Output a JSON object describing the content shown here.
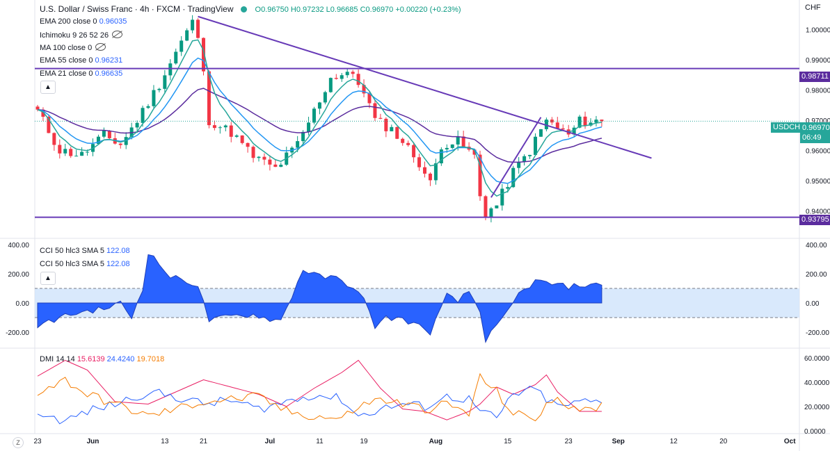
{
  "header": {
    "symbol_title": "U.S. Dollar / Swiss Franc · 4h · FXCM · TradingView",
    "ohlc": "O0.96750 H0.97232 L0.96685 C0.96970 +0.00220 (+0.23%)"
  },
  "indicators_main": [
    {
      "label": "EMA 200 close 0",
      "value": "0.96035",
      "visible": true
    },
    {
      "label": "Ichimoku 9 26 52 26",
      "value": "",
      "visible": false
    },
    {
      "label": "MA 100 close 0",
      "value": "",
      "visible": false
    },
    {
      "label": "EMA 55 close 0",
      "value": "0.96231",
      "visible": true
    },
    {
      "label": "EMA 21 close 0",
      "value": "0.96635",
      "visible": true
    }
  ],
  "cci_legend": [
    {
      "label": "CCI 50 hlc3 SMA 5",
      "value": "122.08"
    },
    {
      "label": "CCI 50 hlc3 SMA 5",
      "value": "122.08"
    }
  ],
  "dmi_legend": {
    "label": "DMI 14 14",
    "v1": "15.6139",
    "v2": "24.4240",
    "v3": "19.7018"
  },
  "currency": "CHF",
  "symbol_tag": "USDCHF",
  "price_tag": "0.96970",
  "countdown": "06:49",
  "level_high": "0.98711",
  "level_low": "0.93795",
  "colors": {
    "up": "#089981",
    "down": "#f23645",
    "ema21": "#26a69a",
    "ema55": "#2196f3",
    "ema200": "#5b2c9e",
    "trend": "#673ab7",
    "cci_fill": "#2962ff",
    "cci_band": "#cfe3fb",
    "dmi_plus": "#2962ff",
    "dmi_minus": "#f57c00",
    "adx": "#e91e63"
  },
  "chart_data": [
    {
      "type": "candlestick",
      "title": "U.S. Dollar / Swiss Franc",
      "timeframe": "4h",
      "y_ticks": [
        "1.00000",
        "0.99000",
        "0.98000",
        "0.97000",
        "0.96000",
        "0.95000",
        "0.94000"
      ],
      "x_ticks": [
        "23",
        "Jun",
        "13",
        "21",
        "Jul",
        "11",
        "19",
        "Aug",
        "15",
        "23",
        "Sep",
        "12",
        "20",
        "Oct"
      ],
      "ylim": [
        0.9335,
        1.007
      ],
      "close_path": [
        {
          "x": 0,
          "p": 0.973
        },
        {
          "x": 4,
          "p": 0.96
        },
        {
          "x": 8,
          "p": 0.9585
        },
        {
          "x": 12,
          "p": 0.965
        },
        {
          "x": 15,
          "p": 0.962
        },
        {
          "x": 18,
          "p": 0.97
        },
        {
          "x": 22,
          "p": 0.982
        },
        {
          "x": 26,
          "p": 0.996
        },
        {
          "x": 28.5,
          "p": 1.004
        },
        {
          "x": 30,
          "p": 0.985
        },
        {
          "x": 31,
          "p": 0.97
        },
        {
          "x": 35,
          "p": 0.966
        },
        {
          "x": 39,
          "p": 0.958
        },
        {
          "x": 43,
          "p": 0.954
        },
        {
          "x": 47,
          "p": 0.962
        },
        {
          "x": 50,
          "p": 0.973
        },
        {
          "x": 53,
          "p": 0.984
        },
        {
          "x": 56,
          "p": 0.986
        },
        {
          "x": 59,
          "p": 0.98
        },
        {
          "x": 61,
          "p": 0.97
        },
        {
          "x": 64,
          "p": 0.967
        },
        {
          "x": 66,
          "p": 0.963
        },
        {
          "x": 69,
          "p": 0.956
        },
        {
          "x": 71,
          "p": 0.949
        },
        {
          "x": 73,
          "p": 0.962
        },
        {
          "x": 76,
          "p": 0.963
        },
        {
          "x": 79,
          "p": 0.958
        },
        {
          "x": 80.5,
          "p": 0.9385
        },
        {
          "x": 83,
          "p": 0.942
        },
        {
          "x": 86,
          "p": 0.953
        },
        {
          "x": 89,
          "p": 0.96
        },
        {
          "x": 92,
          "p": 0.97
        },
        {
          "x": 96,
          "p": 0.965
        },
        {
          "x": 98,
          "p": 0.9697
        }
      ],
      "annotations": {
        "horizontal_levels": [
          0.98711,
          0.93795
        ],
        "downtrend_line": [
          {
            "x": 29,
            "p": 1.0043
          },
          {
            "x": 111,
            "p": 0.9575
          }
        ],
        "channel_line": [
          {
            "x": 82,
            "p": 0.9445
          },
          {
            "x": 91,
            "p": 0.971
          }
        ],
        "last_price": 0.9697
      }
    },
    {
      "type": "area",
      "title": "CCI 50 hlc3 SMA 5",
      "y_ticks": [
        "400.00",
        "200.00",
        "0.00",
        "-200.00"
      ],
      "ylim": [
        -280,
        420
      ],
      "band": [
        -100,
        100
      ],
      "path": [
        {
          "x": 0,
          "v": -160
        },
        {
          "x": 4,
          "v": -100
        },
        {
          "x": 8,
          "v": -60
        },
        {
          "x": 12,
          "v": -40
        },
        {
          "x": 15,
          "v": 0
        },
        {
          "x": 17,
          "v": -100
        },
        {
          "x": 19,
          "v": 100
        },
        {
          "x": 20,
          "v": 350
        },
        {
          "x": 24,
          "v": 180
        },
        {
          "x": 27,
          "v": 150
        },
        {
          "x": 29,
          "v": 120
        },
        {
          "x": 31,
          "v": -120
        },
        {
          "x": 35,
          "v": -90
        },
        {
          "x": 39,
          "v": -80
        },
        {
          "x": 42,
          "v": -110
        },
        {
          "x": 44,
          "v": -120
        },
        {
          "x": 46,
          "v": 50
        },
        {
          "x": 48,
          "v": 230
        },
        {
          "x": 51,
          "v": 180
        },
        {
          "x": 54,
          "v": 170
        },
        {
          "x": 57,
          "v": 110
        },
        {
          "x": 59,
          "v": 20
        },
        {
          "x": 61,
          "v": -160
        },
        {
          "x": 63,
          "v": -100
        },
        {
          "x": 66,
          "v": -110
        },
        {
          "x": 69,
          "v": -160
        },
        {
          "x": 71,
          "v": -200
        },
        {
          "x": 74,
          "v": 50
        },
        {
          "x": 76,
          "v": 10
        },
        {
          "x": 78,
          "v": 80
        },
        {
          "x": 80,
          "v": -60
        },
        {
          "x": 81,
          "v": -250
        },
        {
          "x": 84,
          "v": -120
        },
        {
          "x": 87,
          "v": 60
        },
        {
          "x": 90,
          "v": 150
        },
        {
          "x": 93,
          "v": 130
        },
        {
          "x": 96,
          "v": 110
        },
        {
          "x": 98,
          "v": 122
        }
      ]
    },
    {
      "type": "line",
      "title": "DMI 14 14",
      "y_ticks": [
        "60.0000",
        "40.0000",
        "20.0000",
        "0.0000"
      ],
      "ylim": [
        -2,
        64
      ],
      "series": [
        {
          "name": "15.6139",
          "color": "#e91e63",
          "values": [
            {
              "x": 0,
              "v": 45
            },
            {
              "x": 5,
              "v": 58
            },
            {
              "x": 9,
              "v": 50
            },
            {
              "x": 14,
              "v": 24
            },
            {
              "x": 20,
              "v": 22
            },
            {
              "x": 25,
              "v": 32
            },
            {
              "x": 30,
              "v": 42
            },
            {
              "x": 35,
              "v": 36
            },
            {
              "x": 40,
              "v": 30
            },
            {
              "x": 45,
              "v": 20
            },
            {
              "x": 50,
              "v": 35
            },
            {
              "x": 55,
              "v": 48
            },
            {
              "x": 58,
              "v": 58
            },
            {
              "x": 62,
              "v": 35
            },
            {
              "x": 66,
              "v": 18
            },
            {
              "x": 70,
              "v": 16
            },
            {
              "x": 74,
              "v": 9
            },
            {
              "x": 78,
              "v": 16
            },
            {
              "x": 80,
              "v": 22
            },
            {
              "x": 83,
              "v": 36
            },
            {
              "x": 86,
              "v": 30
            },
            {
              "x": 90,
              "v": 38
            },
            {
              "x": 92,
              "v": 46
            },
            {
              "x": 94,
              "v": 32
            },
            {
              "x": 97,
              "v": 20
            },
            {
              "x": 98,
              "v": 16
            }
          ]
        },
        {
          "name": "24.4240",
          "color": "#2962ff",
          "values": [
            {
              "x": 0,
              "v": 14
            },
            {
              "x": 5,
              "v": 8
            },
            {
              "x": 9,
              "v": 16
            },
            {
              "x": 14,
              "v": 22
            },
            {
              "x": 20,
              "v": 32
            },
            {
              "x": 25,
              "v": 28
            },
            {
              "x": 30,
              "v": 22
            },
            {
              "x": 35,
              "v": 25
            },
            {
              "x": 40,
              "v": 18
            },
            {
              "x": 45,
              "v": 24
            },
            {
              "x": 50,
              "v": 30
            },
            {
              "x": 55,
              "v": 26
            },
            {
              "x": 58,
              "v": 12
            },
            {
              "x": 62,
              "v": 18
            },
            {
              "x": 66,
              "v": 22
            },
            {
              "x": 70,
              "v": 20
            },
            {
              "x": 74,
              "v": 28
            },
            {
              "x": 78,
              "v": 26
            },
            {
              "x": 80,
              "v": 16
            },
            {
              "x": 83,
              "v": 10
            },
            {
              "x": 86,
              "v": 30
            },
            {
              "x": 90,
              "v": 34
            },
            {
              "x": 92,
              "v": 26
            },
            {
              "x": 94,
              "v": 20
            },
            {
              "x": 97,
              "v": 22
            },
            {
              "x": 98,
              "v": 24
            }
          ]
        },
        {
          "name": "19.7018",
          "color": "#f57c00",
          "values": [
            {
              "x": 0,
              "v": 32
            },
            {
              "x": 5,
              "v": 42
            },
            {
              "x": 9,
              "v": 30
            },
            {
              "x": 14,
              "v": 22
            },
            {
              "x": 20,
              "v": 12
            },
            {
              "x": 25,
              "v": 18
            },
            {
              "x": 30,
              "v": 24
            },
            {
              "x": 35,
              "v": 26
            },
            {
              "x": 40,
              "v": 28
            },
            {
              "x": 45,
              "v": 16
            },
            {
              "x": 50,
              "v": 12
            },
            {
              "x": 55,
              "v": 10
            },
            {
              "x": 58,
              "v": 20
            },
            {
              "x": 62,
              "v": 26
            },
            {
              "x": 66,
              "v": 22
            },
            {
              "x": 70,
              "v": 18
            },
            {
              "x": 74,
              "v": 22
            },
            {
              "x": 78,
              "v": 14
            },
            {
              "x": 80,
              "v": 44
            },
            {
              "x": 83,
              "v": 32
            },
            {
              "x": 86,
              "v": 14
            },
            {
              "x": 90,
              "v": 10
            },
            {
              "x": 92,
              "v": 22
            },
            {
              "x": 94,
              "v": 24
            },
            {
              "x": 97,
              "v": 20
            },
            {
              "x": 98,
              "v": 20
            }
          ]
        }
      ]
    }
  ]
}
